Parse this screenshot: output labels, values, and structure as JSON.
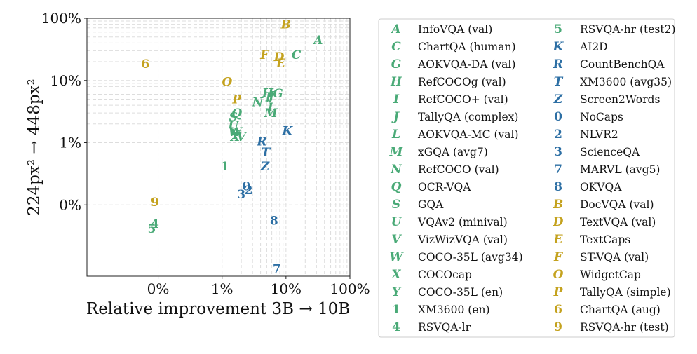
{
  "chart_data": {
    "type": "scatter",
    "xlabel": "Relative improvement 3B → 10B",
    "ylabel": "224px² → 448px²",
    "x_scale": "symlog",
    "y_scale": "symlog",
    "xlim": [
      -1.3,
      100
    ],
    "ylim": [
      -1.4,
      100
    ],
    "x_ticks": [
      {
        "value": 0,
        "label": "0%"
      },
      {
        "value": 1,
        "label": "1%"
      },
      {
        "value": 10,
        "label": "10%"
      },
      {
        "value": 100,
        "label": "100%"
      }
    ],
    "y_ticks": [
      {
        "value": 0,
        "label": "0%"
      },
      {
        "value": 1,
        "label": "1%"
      },
      {
        "value": 10,
        "label": "10%"
      },
      {
        "value": 100,
        "label": "100%"
      }
    ],
    "grid": true,
    "legend_position": "right",
    "colors": {
      "green": "#4aaa77",
      "blue": "#2d6fa4",
      "gold": "#c4a21e"
    },
    "points": [
      {
        "marker": "A",
        "label": "InfoVQA (val)",
        "color": "green",
        "x": 32,
        "y": 45
      },
      {
        "marker": "C",
        "label": "ChartQA (human)",
        "color": "green",
        "x": 14.5,
        "y": 26
      },
      {
        "marker": "G",
        "label": "AOKVQA-DA (val)",
        "color": "green",
        "x": 7.5,
        "y": 6.2
      },
      {
        "marker": "H",
        "label": "RefCOCOg (val)",
        "color": "green",
        "x": 5.2,
        "y": 6.3
      },
      {
        "marker": "I",
        "label": "RefCOCO+ (val)",
        "color": "green",
        "x": 5.3,
        "y": 5.4
      },
      {
        "marker": "J",
        "label": "TallyQA (complex)",
        "color": "green",
        "x": 5.9,
        "y": 5.7
      },
      {
        "marker": "L",
        "label": "AOKVQA-MC (val)",
        "color": "green",
        "x": 6.0,
        "y": 3.7
      },
      {
        "marker": "M",
        "label": "xGQA (avg7)",
        "color": "green",
        "x": 5.8,
        "y": 3.0
      },
      {
        "marker": "N",
        "label": "RefCOCO (val)",
        "color": "green",
        "x": 3.6,
        "y": 4.5
      },
      {
        "marker": "Q",
        "label": "OCR-VQA",
        "color": "green",
        "x": 1.7,
        "y": 3.0
      },
      {
        "marker": "S",
        "label": "GQA",
        "color": "green",
        "x": 1.5,
        "y": 2.6
      },
      {
        "marker": "U",
        "label": "VQAv2 (minival)",
        "color": "green",
        "x": 1.5,
        "y": 1.9
      },
      {
        "marker": "V",
        "label": "VizWizVQA (val)",
        "color": "green",
        "x": 2.0,
        "y": 1.25
      },
      {
        "marker": "W",
        "label": "COCO-35L (avg34)",
        "color": "green",
        "x": 1.6,
        "y": 1.5
      },
      {
        "marker": "X",
        "label": "COCOcap",
        "color": "green",
        "x": 1.6,
        "y": 1.25
      },
      {
        "marker": "Y",
        "label": "COCO-35L (en)",
        "color": "green",
        "x": 1.6,
        "y": 1.35
      },
      {
        "marker": "1",
        "label": "XM3600 (en)",
        "color": "green",
        "x": 1.1,
        "y": 0.62
      },
      {
        "marker": "4",
        "label": "RSVQA-lr",
        "color": "green",
        "x": -0.05,
        "y": -0.3
      },
      {
        "marker": "5",
        "label": "RSVQA-hr (test2)",
        "color": "green",
        "x": -0.1,
        "y": -0.38
      },
      {
        "marker": "K",
        "label": "AI2D",
        "color": "blue",
        "x": 10.5,
        "y": 1.55
      },
      {
        "marker": "R",
        "label": "CountBenchQA",
        "color": "blue",
        "x": 4.2,
        "y": 1.05
      },
      {
        "marker": "T",
        "label": "XM3600 (avg35)",
        "color": "blue",
        "x": 4.8,
        "y": 0.85
      },
      {
        "marker": "Z",
        "label": "Screen2Words",
        "color": "blue",
        "x": 4.7,
        "y": 0.62
      },
      {
        "marker": "0",
        "label": "NoCaps",
        "color": "blue",
        "x": 2.4,
        "y": 0.3
      },
      {
        "marker": "2",
        "label": "NLVR2",
        "color": "blue",
        "x": 2.6,
        "y": 0.24
      },
      {
        "marker": "3",
        "label": "ScienceQA",
        "color": "blue",
        "x": 2.0,
        "y": 0.17
      },
      {
        "marker": "7",
        "label": "MARVL (avg5)",
        "color": "blue",
        "x": 7.2,
        "y": -1.05
      },
      {
        "marker": "8",
        "label": "OKVQA",
        "color": "blue",
        "x": 6.5,
        "y": -0.25
      },
      {
        "marker": "B",
        "label": "DocVQA (val)",
        "color": "gold",
        "x": 10.0,
        "y": 80
      },
      {
        "marker": "D",
        "label": "TextVQA (val)",
        "color": "gold",
        "x": 7.8,
        "y": 24
      },
      {
        "marker": "E",
        "label": "TextCaps",
        "color": "gold",
        "x": 8.3,
        "y": 19
      },
      {
        "marker": "F",
        "label": "ST-VQA (val)",
        "color": "gold",
        "x": 4.6,
        "y": 26
      },
      {
        "marker": "O",
        "label": "WidgetCap",
        "color": "gold",
        "x": 1.2,
        "y": 9.5
      },
      {
        "marker": "P",
        "label": "TallyQA (simple)",
        "color": "gold",
        "x": 1.7,
        "y": 5.0
      },
      {
        "marker": "6",
        "label": "ChartQA (aug)",
        "color": "gold",
        "x": -0.2,
        "y": 18.5
      },
      {
        "marker": "9",
        "label": "RSVQA-hr (test)",
        "color": "gold",
        "x": -0.05,
        "y": 0.05
      }
    ]
  }
}
